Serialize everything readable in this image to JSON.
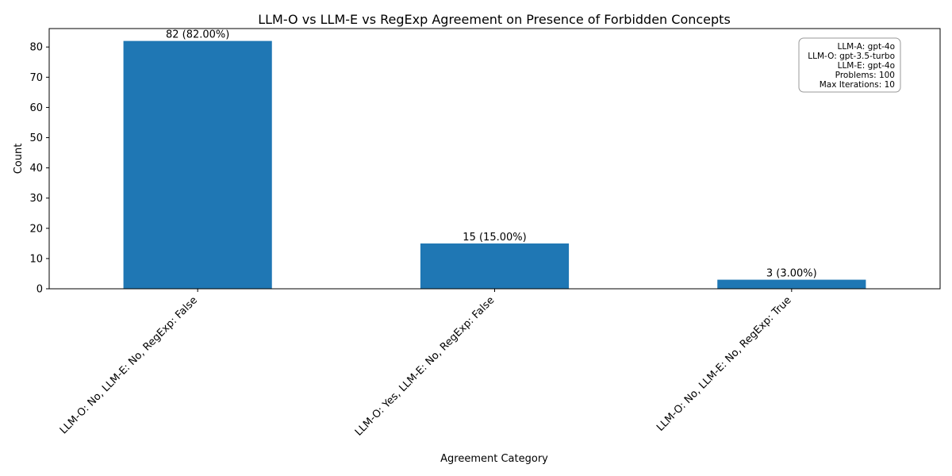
{
  "chart_data": {
    "type": "bar",
    "title": "LLM-O vs LLM-E vs RegExp Agreement on Presence of Forbidden Concepts",
    "xlabel": "Agreement Category",
    "ylabel": "Count",
    "categories": [
      "LLM-O: No, LLM-E: No, RegExp: False",
      "LLM-O: Yes, LLM-E: No, RegExp: False",
      "LLM-O: No, LLM-E: No, RegExp: True"
    ],
    "values": [
      82,
      15,
      3
    ],
    "data_labels": [
      "82 (82.00%)",
      "15 (15.00%)",
      "3 (3.00%)"
    ],
    "ylim": [
      0,
      86.1
    ],
    "yticks": [
      0,
      10,
      20,
      30,
      40,
      50,
      60,
      70,
      80
    ],
    "bar_color": "#1f77b4",
    "grid": false,
    "legend": "none"
  },
  "info_box": {
    "lines": [
      "LLM-A: gpt-4o",
      "LLM-O: gpt-3.5-turbo",
      "LLM-E: gpt-4o",
      "Problems: 100",
      "Max Iterations: 10"
    ]
  }
}
